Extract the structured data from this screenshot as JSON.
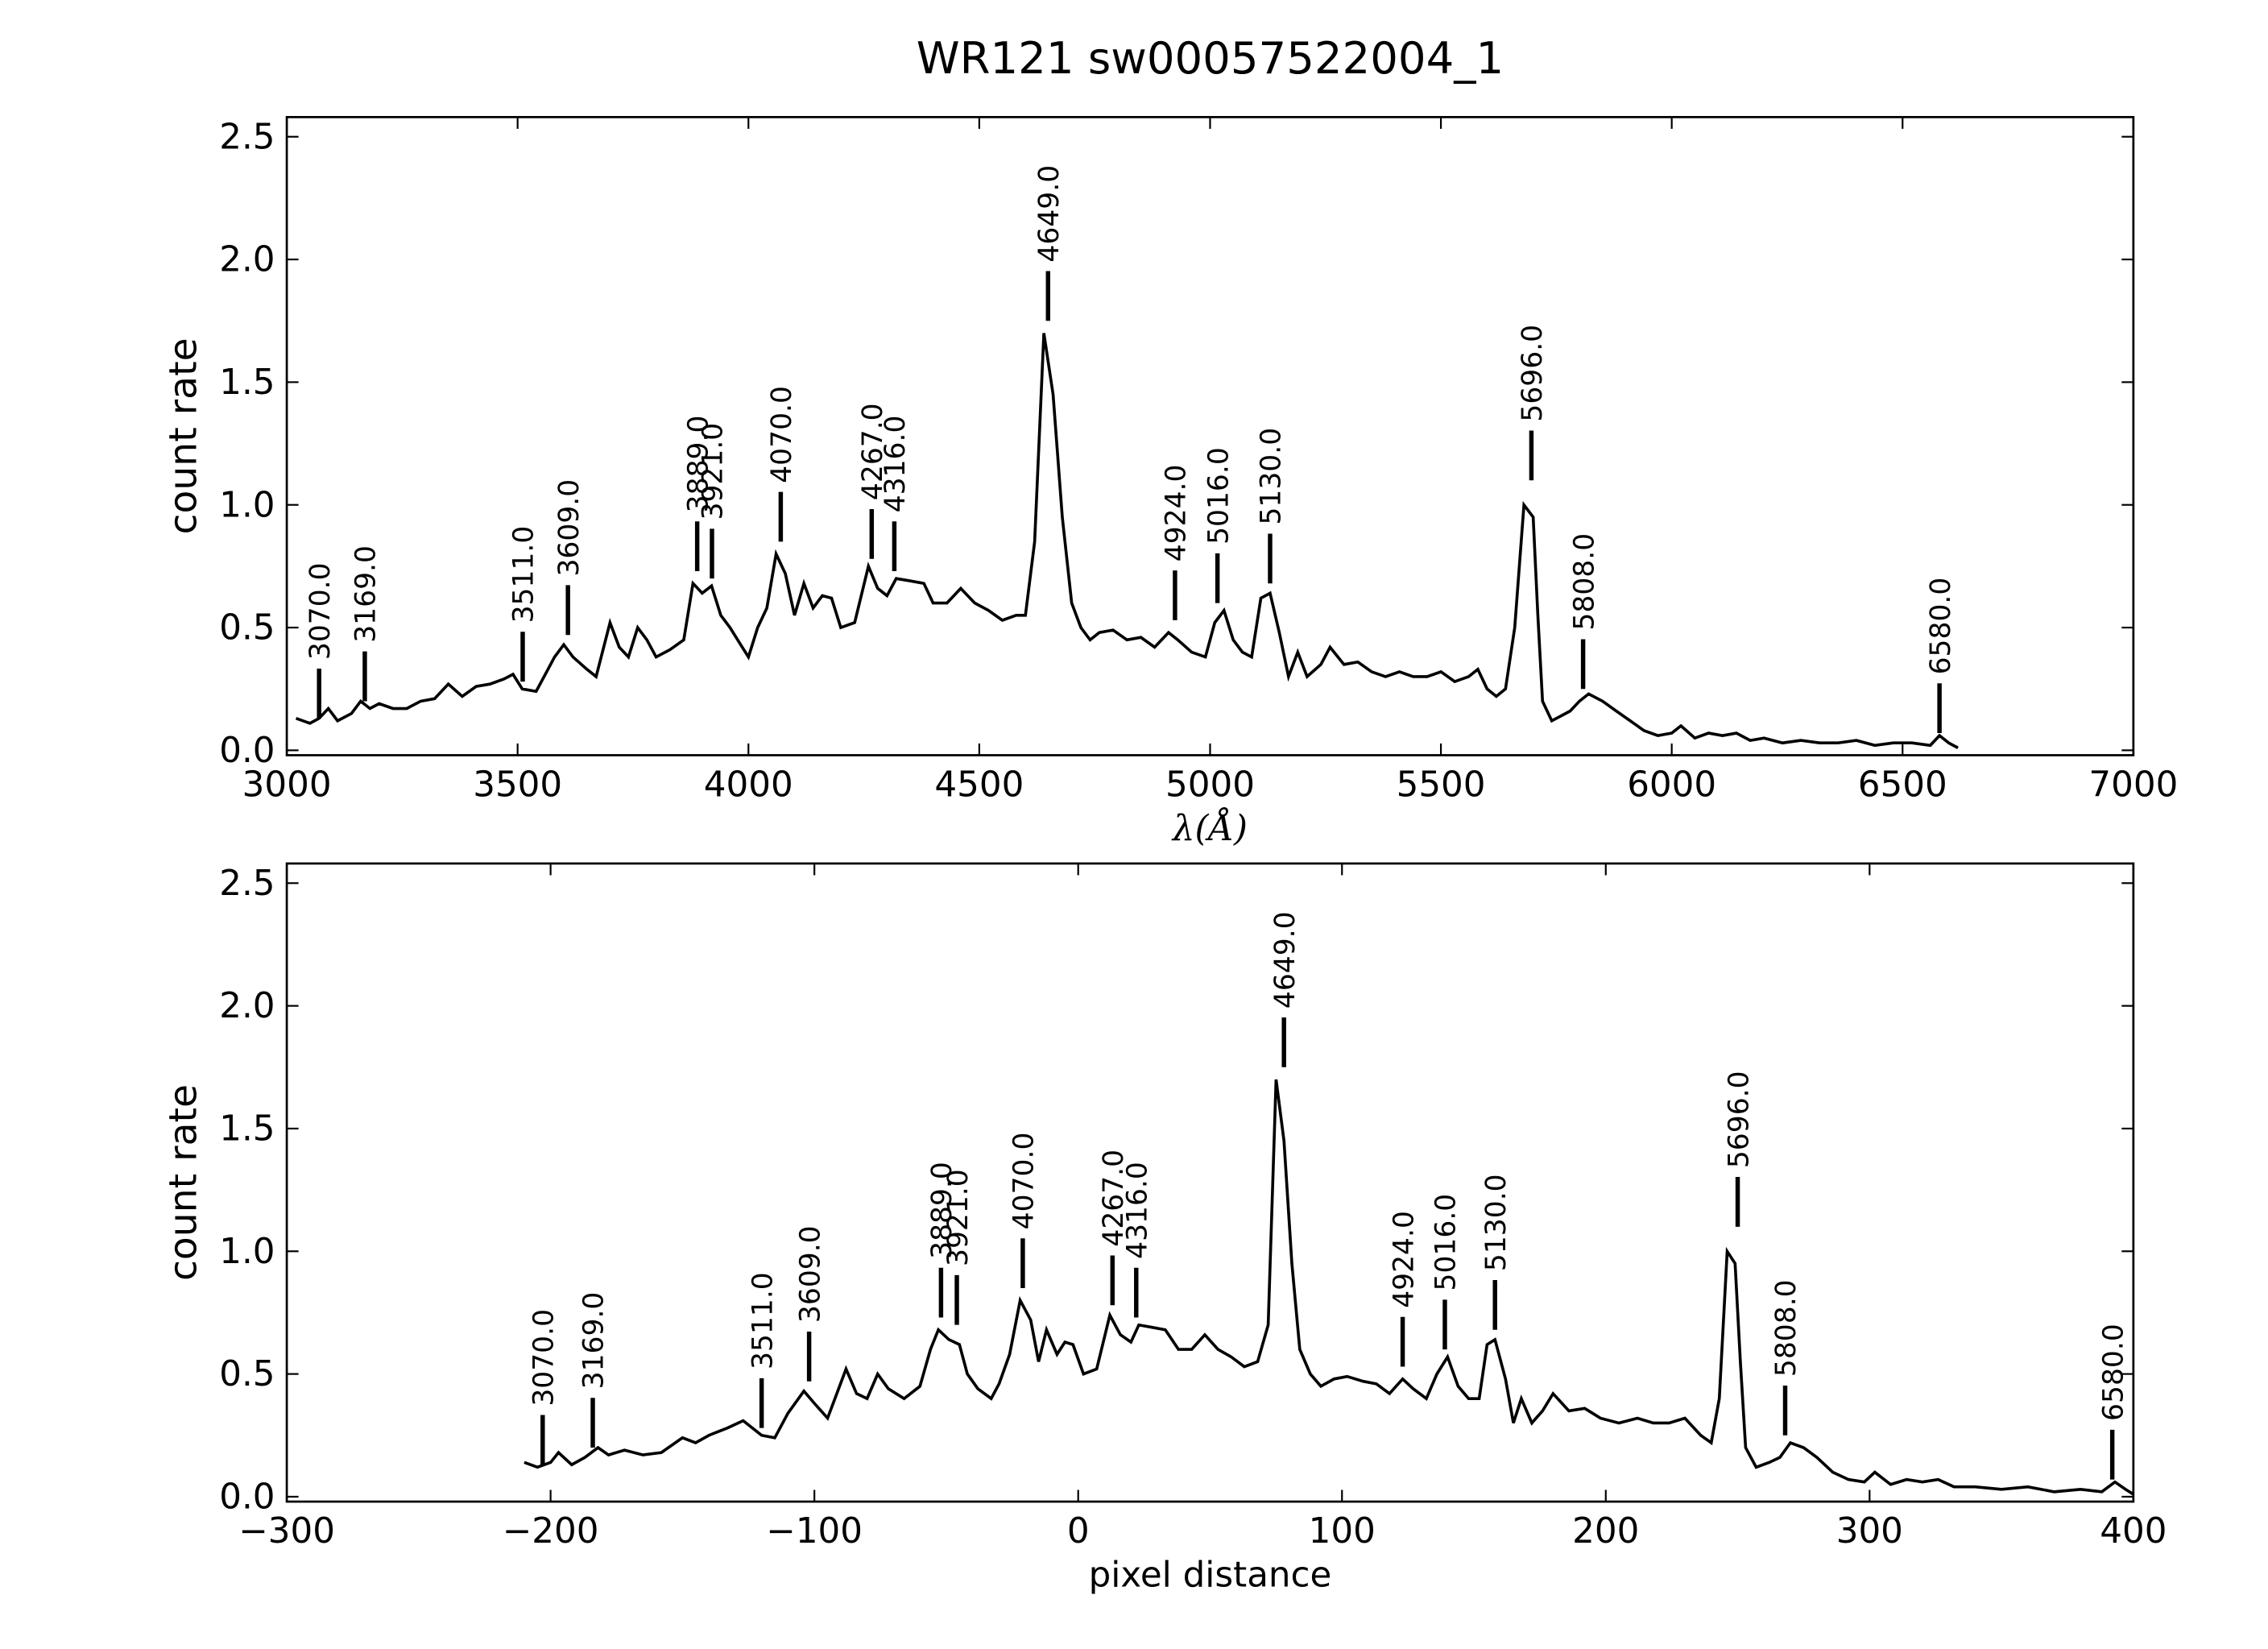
{
  "chart_data": [
    {
      "type": "line",
      "title": "WR121  sw00057522004_1",
      "xlabel": "λ(Å)",
      "ylabel": "count rate",
      "color": "#000000",
      "xlim": [
        3000,
        7000
      ],
      "ylim": [
        -0.02,
        2.58
      ],
      "xticks": [
        3000,
        3500,
        4000,
        4500,
        5000,
        5500,
        6000,
        6500,
        7000
      ],
      "yticks": [
        {
          "value": 0,
          "label": "0.0"
        },
        0.5,
        {
          "value": 1,
          "label": "1.0"
        },
        1.5,
        {
          "value": 2,
          "label": "2.0"
        },
        2.5
      ],
      "x": [
        3020,
        3050,
        3070,
        3090,
        3110,
        3140,
        3160,
        3180,
        3200,
        3230,
        3260,
        3290,
        3320,
        3350,
        3380,
        3410,
        3440,
        3470,
        3490,
        3510,
        3540,
        3560,
        3580,
        3600,
        3620,
        3650,
        3670,
        3700,
        3720,
        3740,
        3760,
        3780,
        3800,
        3830,
        3860,
        3880,
        3900,
        3920,
        3940,
        3960,
        3980,
        4000,
        4020,
        4040,
        4060,
        4080,
        4100,
        4120,
        4140,
        4160,
        4180,
        4200,
        4230,
        4260,
        4280,
        4300,
        4320,
        4350,
        4380,
        4400,
        4430,
        4460,
        4490,
        4520,
        4550,
        4580,
        4600,
        4620,
        4640,
        4660,
        4680,
        4700,
        4720,
        4740,
        4760,
        4790,
        4820,
        4850,
        4880,
        4910,
        4930,
        4960,
        4990,
        5010,
        5030,
        5050,
        5070,
        5090,
        5110,
        5130,
        5150,
        5170,
        5190,
        5210,
        5240,
        5260,
        5290,
        5320,
        5350,
        5380,
        5410,
        5440,
        5470,
        5500,
        5530,
        5560,
        5580,
        5600,
        5620,
        5640,
        5660,
        5680,
        5700,
        5710,
        5720,
        5740,
        5760,
        5780,
        5800,
        5820,
        5850,
        5880,
        5910,
        5940,
        5970,
        6000,
        6020,
        6050,
        6080,
        6110,
        6140,
        6170,
        6200,
        6240,
        6280,
        6320,
        6360,
        6400,
        6440,
        6480,
        6520,
        6560,
        6580,
        6600,
        6620
      ],
      "values": [
        0.13,
        0.11,
        0.13,
        0.17,
        0.12,
        0.15,
        0.2,
        0.17,
        0.19,
        0.17,
        0.17,
        0.2,
        0.21,
        0.27,
        0.22,
        0.26,
        0.27,
        0.29,
        0.31,
        0.25,
        0.24,
        0.31,
        0.38,
        0.43,
        0.38,
        0.33,
        0.3,
        0.52,
        0.42,
        0.38,
        0.5,
        0.45,
        0.38,
        0.41,
        0.45,
        0.68,
        0.64,
        0.67,
        0.55,
        0.5,
        0.44,
        0.38,
        0.5,
        0.58,
        0.8,
        0.72,
        0.55,
        0.68,
        0.58,
        0.63,
        0.62,
        0.5,
        0.52,
        0.75,
        0.66,
        0.63,
        0.7,
        0.69,
        0.68,
        0.6,
        0.6,
        0.66,
        0.6,
        0.57,
        0.53,
        0.55,
        0.55,
        0.85,
        1.7,
        1.45,
        0.95,
        0.6,
        0.5,
        0.45,
        0.48,
        0.49,
        0.45,
        0.46,
        0.42,
        0.48,
        0.45,
        0.4,
        0.38,
        0.52,
        0.57,
        0.45,
        0.4,
        0.38,
        0.62,
        0.64,
        0.48,
        0.3,
        0.4,
        0.3,
        0.35,
        0.42,
        0.35,
        0.36,
        0.32,
        0.3,
        0.32,
        0.3,
        0.3,
        0.32,
        0.28,
        0.3,
        0.33,
        0.25,
        0.22,
        0.25,
        0.5,
        1.0,
        0.95,
        0.55,
        0.2,
        0.12,
        0.14,
        0.16,
        0.2,
        0.23,
        0.2,
        0.16,
        0.12,
        0.08,
        0.06,
        0.07,
        0.1,
        0.05,
        0.07,
        0.06,
        0.07,
        0.04,
        0.05,
        0.03,
        0.04,
        0.03,
        0.03,
        0.04,
        0.02,
        0.03,
        0.03,
        0.02,
        0.06,
        0.03,
        0.01
      ],
      "annotations": [
        {
          "x": 3070,
          "y": 0.13,
          "label": "3070.0"
        },
        {
          "x": 3169,
          "y": 0.2,
          "label": "3169.0"
        },
        {
          "x": 3511,
          "y": 0.28,
          "label": "3511.0"
        },
        {
          "x": 3609,
          "y": 0.47,
          "label": "3609.0"
        },
        {
          "x": 3889,
          "y": 0.73,
          "label": "3889.0"
        },
        {
          "x": 3921,
          "y": 0.7,
          "label": "3921.0"
        },
        {
          "x": 4070,
          "y": 0.85,
          "label": "4070.0"
        },
        {
          "x": 4267,
          "y": 0.78,
          "label": "4267.0"
        },
        {
          "x": 4316,
          "y": 0.73,
          "label": "4316.0"
        },
        {
          "x": 4649,
          "y": 1.75,
          "label": "4649.0"
        },
        {
          "x": 4924,
          "y": 0.53,
          "label": "4924.0"
        },
        {
          "x": 5016,
          "y": 0.6,
          "label": "5016.0"
        },
        {
          "x": 5130,
          "y": 0.68,
          "label": "5130.0"
        },
        {
          "x": 5696,
          "y": 1.1,
          "label": "5696.0"
        },
        {
          "x": 5808,
          "y": 0.25,
          "label": "5808.0"
        },
        {
          "x": 6580,
          "y": 0.07,
          "label": "6580.0"
        }
      ]
    },
    {
      "type": "line",
      "xlabel": "pixel distance",
      "ylabel": "count rate",
      "color": "#000000",
      "xlim": [
        -300,
        400
      ],
      "ylim": [
        -0.02,
        2.58
      ],
      "xticks": [
        {
          "value": -300,
          "label": "−300"
        },
        {
          "value": -200,
          "label": "−200"
        },
        {
          "value": -100,
          "label": "−100"
        },
        0,
        100,
        200,
        300,
        400
      ],
      "yticks": [
        {
          "value": 0,
          "label": "0.0"
        },
        0.5,
        {
          "value": 1,
          "label": "1.0"
        },
        1.5,
        {
          "value": 2,
          "label": "2.0"
        },
        2.5
      ],
      "x": [
        -210,
        -205,
        -200,
        -197,
        -192,
        -187,
        -182,
        -178,
        -172,
        -165,
        -158,
        -150,
        -145,
        -140,
        -133,
        -127,
        -120,
        -115,
        -110,
        -104,
        -100,
        -95,
        -88,
        -84,
        -80,
        -76,
        -72,
        -66,
        -60,
        -56,
        -53,
        -49,
        -45,
        -42,
        -38,
        -33,
        -30,
        -26,
        -22,
        -18,
        -15,
        -12,
        -8,
        -5,
        -2,
        2,
        7,
        12,
        16,
        20,
        23,
        28,
        33,
        38,
        43,
        48,
        53,
        58,
        63,
        68,
        72,
        75,
        78,
        81,
        84,
        88,
        92,
        97,
        102,
        108,
        113,
        118,
        123,
        127,
        132,
        136,
        140,
        144,
        148,
        152,
        155,
        158,
        162,
        165,
        168,
        172,
        176,
        180,
        186,
        192,
        198,
        205,
        212,
        218,
        224,
        230,
        236,
        240,
        243,
        246,
        249,
        251,
        253,
        257,
        262,
        266,
        270,
        275,
        280,
        286,
        292,
        298,
        302,
        308,
        314,
        320,
        326,
        332,
        340,
        350,
        360,
        370,
        380,
        388,
        393,
        397,
        400
      ],
      "values": [
        0.14,
        0.12,
        0.14,
        0.18,
        0.13,
        0.16,
        0.2,
        0.17,
        0.19,
        0.17,
        0.18,
        0.24,
        0.22,
        0.25,
        0.28,
        0.31,
        0.25,
        0.24,
        0.34,
        0.43,
        0.38,
        0.32,
        0.52,
        0.42,
        0.4,
        0.5,
        0.44,
        0.4,
        0.45,
        0.6,
        0.68,
        0.64,
        0.62,
        0.5,
        0.44,
        0.4,
        0.46,
        0.58,
        0.8,
        0.72,
        0.55,
        0.68,
        0.58,
        0.63,
        0.62,
        0.5,
        0.52,
        0.74,
        0.66,
        0.63,
        0.7,
        0.69,
        0.68,
        0.6,
        0.6,
        0.66,
        0.6,
        0.57,
        0.53,
        0.55,
        0.7,
        1.7,
        1.45,
        0.95,
        0.6,
        0.5,
        0.45,
        0.48,
        0.49,
        0.47,
        0.46,
        0.42,
        0.48,
        0.44,
        0.4,
        0.5,
        0.57,
        0.45,
        0.4,
        0.4,
        0.62,
        0.64,
        0.48,
        0.3,
        0.4,
        0.3,
        0.35,
        0.42,
        0.35,
        0.36,
        0.32,
        0.3,
        0.32,
        0.3,
        0.3,
        0.32,
        0.25,
        0.22,
        0.4,
        1.0,
        0.95,
        0.55,
        0.2,
        0.12,
        0.14,
        0.16,
        0.22,
        0.2,
        0.16,
        0.1,
        0.07,
        0.06,
        0.1,
        0.05,
        0.07,
        0.06,
        0.07,
        0.04,
        0.04,
        0.03,
        0.04,
        0.02,
        0.03,
        0.02,
        0.06,
        0.03,
        0.01
      ],
      "annotations": [
        {
          "x": -203,
          "y": 0.13,
          "label": "3070.0"
        },
        {
          "x": -184,
          "y": 0.2,
          "label": "3169.0"
        },
        {
          "x": -120,
          "y": 0.28,
          "label": "3511.0"
        },
        {
          "x": -102,
          "y": 0.47,
          "label": "3609.0"
        },
        {
          "x": -52,
          "y": 0.73,
          "label": "3889.0"
        },
        {
          "x": -46,
          "y": 0.7,
          "label": "3921.0"
        },
        {
          "x": -21,
          "y": 0.85,
          "label": "4070.0"
        },
        {
          "x": 13,
          "y": 0.78,
          "label": "4267.0"
        },
        {
          "x": 22,
          "y": 0.73,
          "label": "4316.0"
        },
        {
          "x": 78,
          "y": 1.75,
          "label": "4649.0"
        },
        {
          "x": 123,
          "y": 0.53,
          "label": "4924.0"
        },
        {
          "x": 139,
          "y": 0.6,
          "label": "5016.0"
        },
        {
          "x": 158,
          "y": 0.68,
          "label": "5130.0"
        },
        {
          "x": 250,
          "y": 1.1,
          "label": "5696.0"
        },
        {
          "x": 268,
          "y": 0.25,
          "label": "5808.0"
        },
        {
          "x": 392,
          "y": 0.07,
          "label": "6580.0"
        }
      ]
    }
  ]
}
